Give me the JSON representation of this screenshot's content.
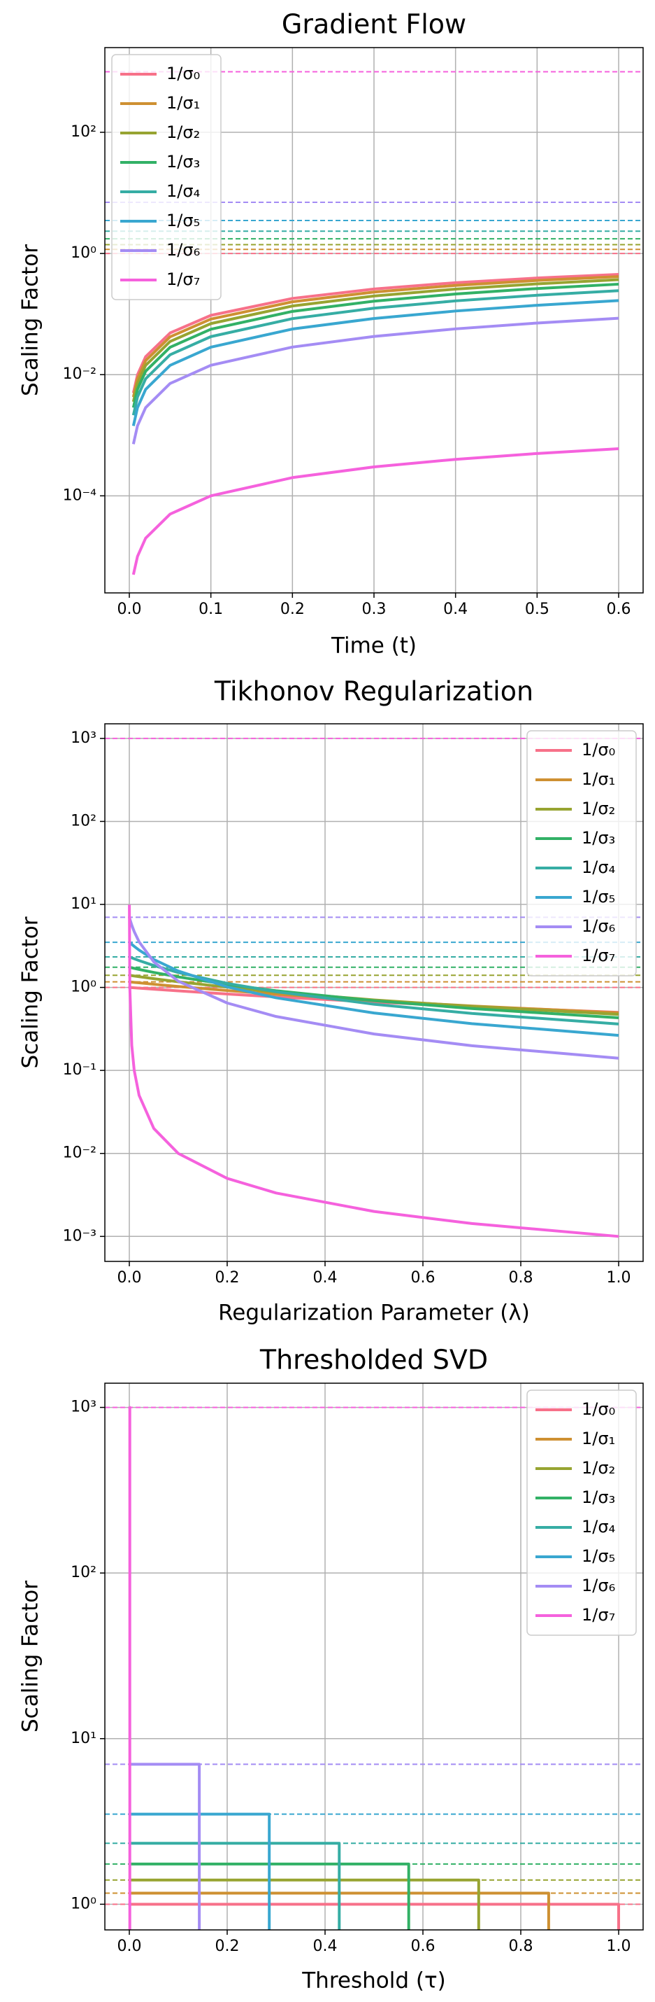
{
  "chart_data": [
    {
      "type": "line",
      "title": "Gradient Flow",
      "xlabel": "Time (t)",
      "ylabel": "Scaling Factor",
      "yscale": "log",
      "grid": true,
      "legend": "upper left",
      "xlim": [
        -0.03,
        0.63
      ],
      "xticks": [
        {
          "value": 0,
          "label": "0.0"
        },
        0.1,
        0.2,
        0.3,
        0.4,
        0.5,
        0.6
      ],
      "ylim": [
        2.5e-06,
        2500
      ],
      "yticks": [
        {
          "value": 0.0001,
          "label": "10⁻⁴"
        },
        {
          "value": 0.01,
          "label": "10⁻²"
        },
        {
          "value": 1,
          "label": "10⁰"
        },
        {
          "value": 100,
          "label": "10²"
        }
      ],
      "hlines": [
        1,
        1.167,
        1.4,
        1.75,
        2.333,
        3.5,
        7,
        1000
      ],
      "x": [
        0.005,
        0.01,
        0.02,
        0.05,
        0.1,
        0.2,
        0.3,
        0.4,
        0.5,
        0.6
      ],
      "series": [
        {
          "name": "1/σ₀",
          "color": "#f77189",
          "values": [
            0.00499,
            0.00995,
            0.0198,
            0.0488,
            0.0952,
            0.1813,
            0.2592,
            0.3297,
            0.3935,
            0.4512
          ]
        },
        {
          "name": "1/σ₁",
          "color": "#ce9032",
          "values": [
            0.004278,
            0.008541,
            0.01702,
            0.04209,
            0.08266,
            0.1595,
            0.2308,
            0.2971,
            0.3588,
            0.4159
          ]
        },
        {
          "name": "1/σ₂",
          "color": "#97a431",
          "values": [
            0.003569,
            0.007127,
            0.01422,
            0.03528,
            0.06967,
            0.1359,
            0.1988,
            0.2586,
            0.3154,
            0.3694
          ]
        },
        {
          "name": "1/σ₃",
          "color": "#32b166",
          "values": [
            0.002857,
            0.005709,
            0.0114,
            0.02836,
            0.05626,
            0.1107,
            0.1634,
            0.2144,
            0.2638,
            0.3116
          ]
        },
        {
          "name": "1/σ₄",
          "color": "#36ada4",
          "values": [
            0.00214,
            0.004278,
            0.008546,
            0.02131,
            0.04243,
            0.08408,
            0.125,
            0.1651,
            0.2045,
            0.2432
          ]
        },
        {
          "name": "1/σ₅",
          "color": "#39a7d0",
          "values": [
            0.001427,
            0.002852,
            0.005703,
            0.01424,
            0.02842,
            0.05664,
            0.08458,
            0.1123,
            0.1398,
            0.1671
          ]
        },
        {
          "name": "1/σ₆",
          "color": "#a48cf4",
          "values": [
            0.000715,
            0.00143,
            0.00286,
            0.007146,
            0.01429,
            0.02854,
            0.04277,
            0.05697,
            0.07114,
            0.08527
          ]
        },
        {
          "name": "1/σ₇",
          "color": "#f561dd",
          "values": [
            5e-06,
            1e-05,
            2e-05,
            5e-05,
            0.0001,
            0.0002,
            0.0003,
            0.0004,
            0.0005,
            0.0006
          ]
        }
      ]
    },
    {
      "type": "line",
      "title": "Tikhonov Regularization",
      "xlabel": "Regularization Parameter (λ)",
      "ylabel": "Scaling Factor",
      "yscale": "log",
      "grid": true,
      "legend": "upper right",
      "xlim": [
        -0.05,
        1.05
      ],
      "xticks": [
        {
          "value": 0,
          "label": "0.0"
        },
        0.2,
        0.4,
        0.6,
        0.8,
        {
          "value": 1,
          "label": "1.0"
        }
      ],
      "ylim": [
        0.0005,
        1500
      ],
      "yticks": [
        {
          "value": 0.001,
          "label": "10⁻³"
        },
        {
          "value": 0.01,
          "label": "10⁻²"
        },
        {
          "value": 0.1,
          "label": "10⁻¹"
        },
        {
          "value": 1,
          "label": "10⁰"
        },
        {
          "value": 10,
          "label": "10¹"
        },
        {
          "value": 100,
          "label": "10²"
        },
        {
          "value": 1000,
          "label": "10³"
        }
      ],
      "hlines": [
        1,
        1.167,
        1.4,
        1.75,
        2.333,
        3.5,
        7,
        1000
      ],
      "x": [
        0.0001,
        0.001,
        0.005,
        0.01,
        0.02,
        0.05,
        0.1,
        0.2,
        0.3,
        0.5,
        0.7,
        1.0
      ],
      "series": [
        {
          "name": "1/σ₀",
          "color": "#f77189",
          "values": [
            0.9999,
            0.999,
            0.995,
            0.9901,
            0.9804,
            0.9524,
            0.9091,
            0.8333,
            0.7692,
            0.6667,
            0.5882,
            0.5
          ]
        },
        {
          "name": "1/σ₁",
          "color": "#ce9032",
          "values": [
            1.1663,
            1.1649,
            1.1586,
            1.1508,
            1.1355,
            1.0921,
            1.0267,
            0.9169,
            0.8283,
            0.6941,
            0.5973,
            0.494
          ]
        },
        {
          "name": "1/σ₂",
          "color": "#97a431",
          "values": [
            1.3992,
            1.3967,
            1.3859,
            1.3726,
            1.3467,
            1.2745,
            1.1701,
            1.0054,
            0.8813,
            0.7068,
            0.59,
            0.4728
          ]
        },
        {
          "name": "1/σ₃",
          "color": "#32b166",
          "values": [
            1.7483,
            1.7435,
            1.7225,
            1.6969,
            1.6479,
            1.5166,
            1.3388,
            1.0845,
            0.9114,
            0.6909,
            0.5563,
            0.4305
          ]
        },
        {
          "name": "1/σ₄",
          "color": "#36ada4",
          "values": [
            2.3341,
            2.3227,
            2.2734,
            2.2148,
            2.106,
            1.8357,
            1.5122,
            1.1181,
            0.8869,
            0.6275,
            0.4855,
            0.3624
          ]
        },
        {
          "name": "1/σ₅",
          "color": "#39a7d0",
          "values": [
            3.5006,
            3.4625,
            3.3025,
            3.1223,
            2.815,
            2.1733,
            1.5749,
            1.0156,
            0.7495,
            0.4917,
            0.3659,
            0.2644
          ]
        },
        {
          "name": "1/σ₆",
          "color": "#a48cf4",
          "values": [
            6.9756,
            6.6822,
            5.6299,
            4.7039,
            3.5396,
            2.0312,
            1.1877,
            0.6488,
            0.4463,
            0.2748,
            0.1985,
            0.1401
          ]
        },
        {
          "name": "1/σ₇",
          "color": "#f561dd",
          "values": [
            9.901,
            0.999,
            0.19996,
            0.09999,
            0.05,
            0.02,
            0.01,
            0.005,
            0.003333,
            0.002,
            0.001429,
            0.001
          ]
        }
      ]
    },
    {
      "type": "line",
      "title": "Thresholded SVD",
      "xlabel": "Threshold (τ)",
      "ylabel": "Scaling Factor",
      "yscale": "log",
      "grid": true,
      "legend": "upper right",
      "xlim": [
        -0.05,
        1.05
      ],
      "xticks": [
        {
          "value": 0,
          "label": "0.0"
        },
        0.2,
        0.4,
        0.6,
        0.8,
        {
          "value": 1,
          "label": "1.0"
        }
      ],
      "ylim": [
        0.7,
        1400
      ],
      "yticks": [
        {
          "value": 1,
          "label": "10⁰"
        },
        {
          "value": 10,
          "label": "10¹"
        },
        {
          "value": 100,
          "label": "10²"
        },
        {
          "value": 1000,
          "label": "10³"
        }
      ],
      "hlines": [
        1,
        1.167,
        1.4,
        1.75,
        2.333,
        3.5,
        7,
        1000
      ],
      "series": [
        {
          "name": "1/σ₀",
          "color": "#f77189",
          "x": [
            0,
            1,
            1
          ],
          "values": [
            1,
            1,
            0
          ]
        },
        {
          "name": "1/σ₁",
          "color": "#ce9032",
          "x": [
            0,
            0.857,
            0.857
          ],
          "values": [
            1.167,
            1.167,
            0
          ]
        },
        {
          "name": "1/σ₂",
          "color": "#97a431",
          "x": [
            0,
            0.714,
            0.714
          ],
          "values": [
            1.4,
            1.4,
            0
          ]
        },
        {
          "name": "1/σ₃",
          "color": "#32b166",
          "x": [
            0,
            0.571,
            0.571
          ],
          "values": [
            1.75,
            1.75,
            0
          ]
        },
        {
          "name": "1/σ₄",
          "color": "#36ada4",
          "x": [
            0,
            0.429,
            0.429
          ],
          "values": [
            2.333,
            2.333,
            0
          ]
        },
        {
          "name": "1/σ₅",
          "color": "#39a7d0",
          "x": [
            0,
            0.286,
            0.286
          ],
          "values": [
            3.5,
            3.5,
            0
          ]
        },
        {
          "name": "1/σ₆",
          "color": "#a48cf4",
          "x": [
            0,
            0.143,
            0.143
          ],
          "values": [
            7,
            7,
            0
          ]
        },
        {
          "name": "1/σ₇",
          "color": "#f561dd",
          "x": [
            0,
            0.001,
            0.001
          ],
          "values": [
            1000,
            1000,
            0
          ]
        }
      ]
    }
  ]
}
